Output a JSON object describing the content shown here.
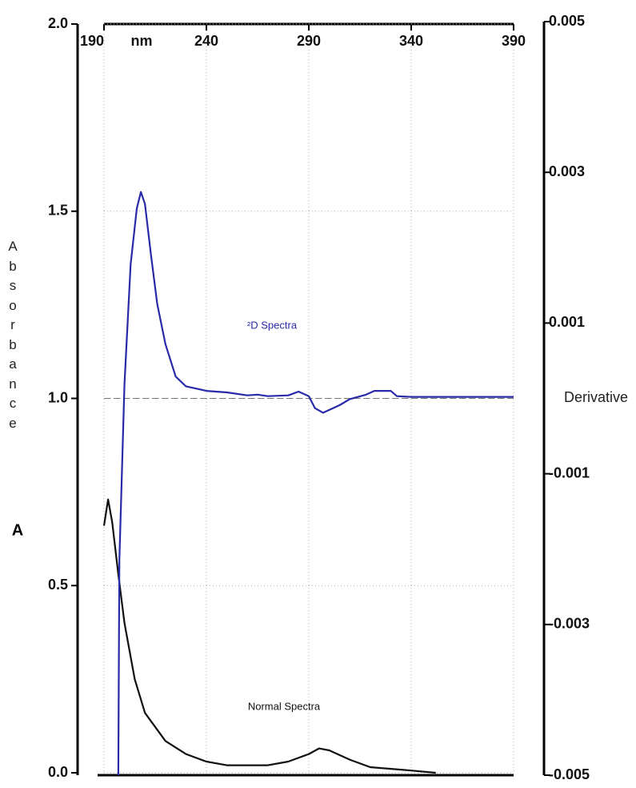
{
  "chart_data": {
    "type": "line",
    "xlabel": "nm",
    "ylabel": "Absorbance",
    "ylabel_unit": "A",
    "y2label": "Derivative",
    "annotations": [
      "²D Spectra",
      "Normal Spectra"
    ],
    "xlim": [
      190,
      390
    ],
    "xticks": [
      190,
      240,
      290,
      340,
      390
    ],
    "ylim": [
      0,
      2
    ],
    "yticks": [
      {
        "value": 0,
        "label": "0.0"
      },
      {
        "value": 0.5,
        "label": "0.5"
      },
      {
        "value": 1,
        "label": "1.0"
      },
      {
        "value": 1.5,
        "label": "1.5"
      },
      {
        "value": 2,
        "label": "2.0"
      }
    ],
    "y2lim": [
      -0.005,
      0.005
    ],
    "y2ticks": [
      0.005,
      0.003,
      0.001,
      -0.001,
      -0.003,
      -0.005
    ],
    "grid": true,
    "series": [
      {
        "name": "Normal Spectra",
        "color": "#111111",
        "x": [
          190,
          192,
          194,
          197,
          200,
          205,
          210,
          220,
          230,
          240,
          250,
          270,
          280,
          290,
          295,
          300,
          310,
          320,
          340,
          352
        ],
        "values": [
          0.66,
          0.73,
          0.67,
          0.53,
          0.4,
          0.25,
          0.16,
          0.085,
          0.05,
          0.03,
          0.02,
          0.02,
          0.03,
          0.05,
          0.065,
          0.06,
          0.035,
          0.015,
          0.006,
          0.0
        ]
      },
      {
        "name": "²D Spectra",
        "color": "#2a2aa8",
        "axis": "y2",
        "x": [
          197,
          197.5,
          200,
          203,
          206,
          208,
          210,
          213,
          216,
          220,
          225,
          230,
          240,
          250,
          260,
          265,
          270,
          280,
          285,
          290,
          293,
          297,
          305,
          310,
          318,
          322,
          330,
          333,
          340,
          390
        ],
        "values": [
          -0.005,
          -0.00215,
          0.00019,
          0.00178,
          0.00252,
          0.00274,
          0.00258,
          0.00189,
          0.00125,
          0.00072,
          0.00029,
          0.00016,
          0.0001,
          8e-05,
          4e-05,
          5e-05,
          3e-05,
          4e-05,
          9e-05,
          3e-05,
          -0.00013,
          -0.00019,
          -9e-05,
          -1e-05,
          5e-05,
          0.0001,
          0.0001,
          3e-05,
          2e-05,
          2e-05
        ]
      }
    ]
  }
}
